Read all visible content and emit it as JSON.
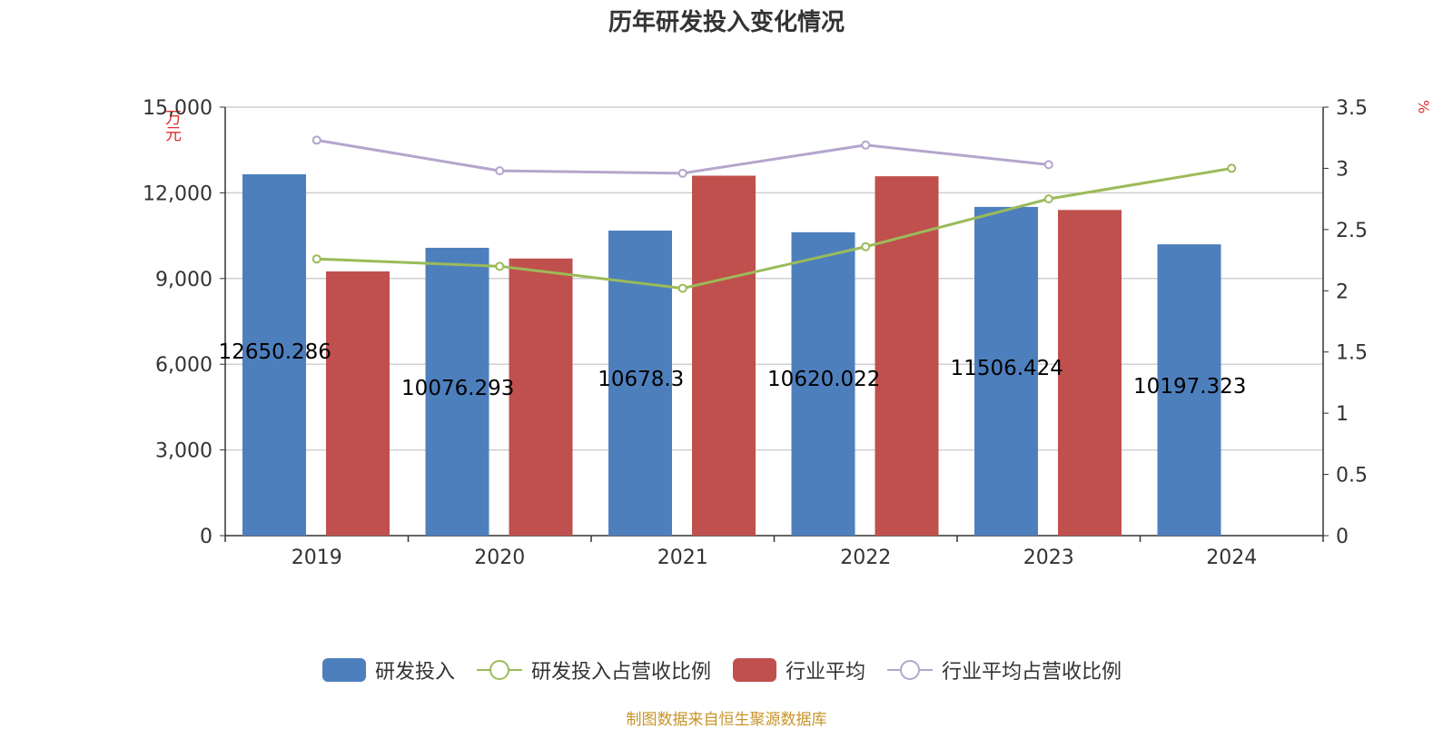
{
  "chart_data": {
    "type": "bar",
    "title": "历年研发投入变化情况",
    "categories": [
      "2019",
      "2020",
      "2021",
      "2022",
      "2023",
      "2024"
    ],
    "y_left": {
      "label": "万元",
      "range": [
        0,
        15000
      ],
      "ticks": [
        "0",
        "3,000",
        "6,000",
        "9,000",
        "12,000",
        "15,000"
      ]
    },
    "y_right": {
      "label": "%",
      "range": [
        0,
        3.5
      ],
      "ticks": [
        "0",
        "0.5",
        "1",
        "1.5",
        "2",
        "2.5",
        "3",
        "3.5"
      ]
    },
    "grid": true,
    "legend_position": "bottom",
    "series": [
      {
        "name": "研发投入",
        "type": "bar",
        "axis": "left",
        "color": "#4e7fbd",
        "values": [
          12650.286,
          10076.293,
          10678.3,
          10620.022,
          11506.424,
          10197.323
        ],
        "labels": [
          "12650.286",
          "10076.293",
          "10678.3",
          "10620.022",
          "11506.424",
          "10197.323"
        ]
      },
      {
        "name": "研发投入占营收比例",
        "type": "line",
        "axis": "right",
        "color": "#9bbb59",
        "values": [
          2.26,
          2.2,
          2.02,
          2.36,
          2.75,
          3.0
        ]
      },
      {
        "name": "行业平均",
        "type": "bar",
        "axis": "left",
        "color": "#c0504d",
        "values": [
          9250,
          9700,
          12600,
          12580,
          11400,
          null
        ]
      },
      {
        "name": "行业平均占营收比例",
        "type": "line",
        "axis": "right",
        "color": "#b3a6cc",
        "values": [
          3.23,
          2.98,
          2.96,
          3.19,
          3.03,
          null
        ]
      }
    ]
  },
  "source_note": "制图数据来自恒生聚源数据库"
}
